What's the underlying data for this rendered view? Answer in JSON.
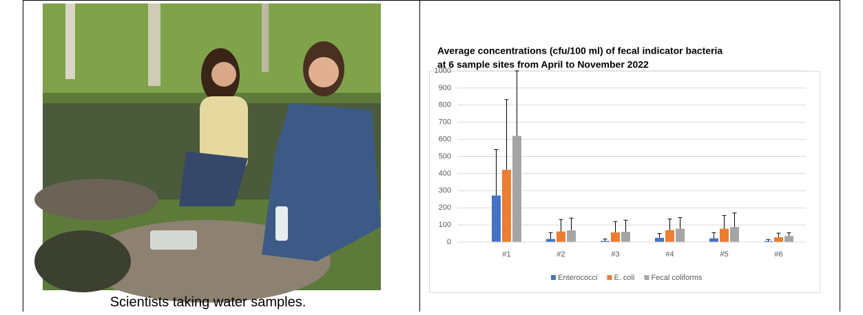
{
  "caption": "Scientists taking water samples.",
  "chart_data": {
    "type": "bar",
    "title": [
      "Average concentrations (cfu/100 ml) of fecal indicator bacteria",
      "at 6 sample sites from April to November 2022"
    ],
    "categories": [
      "#1",
      "#2",
      "#3",
      "#4",
      "#5",
      "#6"
    ],
    "series": [
      {
        "name": "Enterococci",
        "color": "#4472c4",
        "values": [
          272,
          18,
          7,
          25,
          22,
          6
        ],
        "errors": [
          268,
          37,
          11,
          25,
          33,
          9
        ]
      },
      {
        "name": "E. coli",
        "color": "#ed7d31",
        "values": [
          422,
          62,
          57,
          70,
          78,
          28
        ],
        "errors": [
          410,
          70,
          63,
          65,
          77,
          24
        ]
      },
      {
        "name": "Fecal coliforms",
        "color": "#a5a5a5",
        "values": [
          620,
          68,
          60,
          78,
          88,
          35
        ],
        "errors": [
          380,
          72,
          68,
          65,
          82,
          20
        ]
      }
    ],
    "ylim": [
      0,
      1000
    ],
    "yticks": [
      0,
      100,
      200,
      300,
      400,
      500,
      600,
      700,
      800,
      900,
      1000
    ],
    "grid": true,
    "legend": "bottom"
  }
}
